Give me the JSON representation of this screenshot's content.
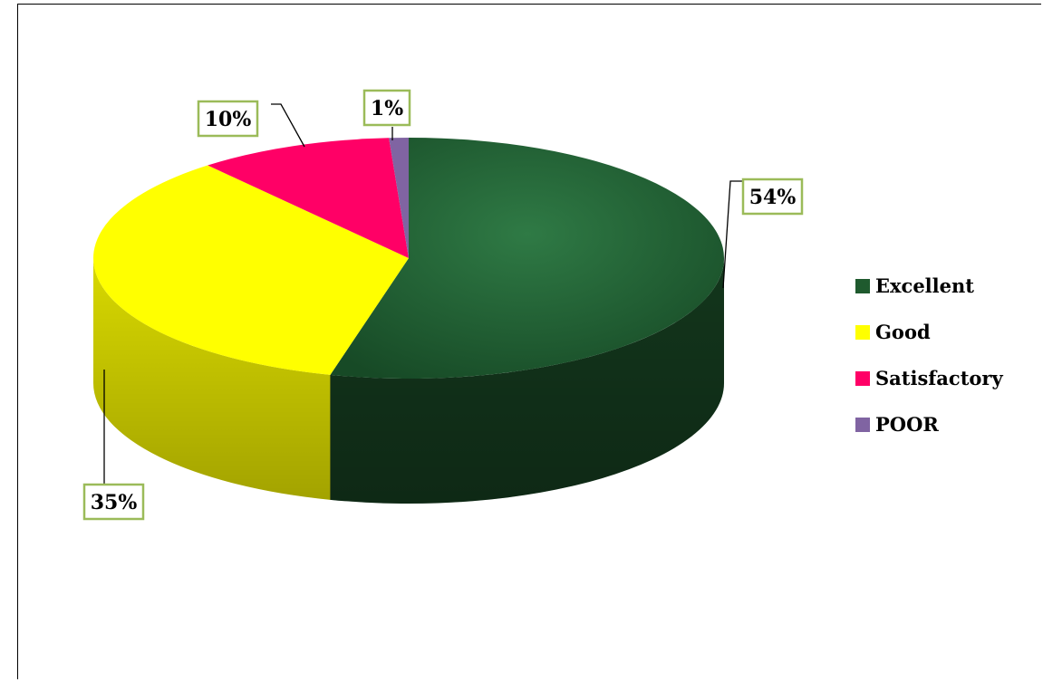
{
  "chart_data": {
    "type": "pie",
    "style": "3d",
    "categories": [
      "Excellent",
      "Good",
      "Satisfactory",
      "POOR"
    ],
    "values": [
      54,
      35,
      10,
      1
    ],
    "labels": [
      "54%",
      "35%",
      "10%",
      "1%"
    ],
    "colors": [
      "#1f5a2e",
      "#ffff00",
      "#ff0066",
      "#8064a2"
    ],
    "legend_position": "right",
    "label_border_color": "#9bbb59"
  }
}
